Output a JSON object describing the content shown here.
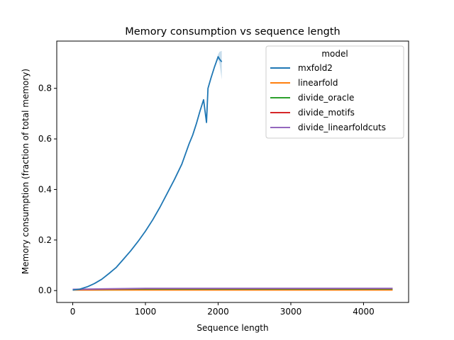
{
  "chart_data": {
    "type": "line",
    "title": "Memory consumption vs sequence length",
    "xlabel": "Sequence length",
    "ylabel": "Memory consumption (fraction of total memory)",
    "xlim": [
      -220,
      4620
    ],
    "ylim": [
      -0.047,
      0.987
    ],
    "xticks": [
      0,
      1000,
      2000,
      3000,
      4000
    ],
    "xtick_labels": [
      "0",
      "1000",
      "2000",
      "3000",
      "4000"
    ],
    "yticks": [
      0.0,
      0.2,
      0.4,
      0.6,
      0.8
    ],
    "ytick_labels": [
      "0.0",
      "0.2",
      "0.4",
      "0.6",
      "0.8"
    ],
    "grid": false,
    "legend": {
      "title": "model",
      "placement": "top-right"
    },
    "series": [
      {
        "name": "mxfold2",
        "color": "#1f77b4",
        "x": [
          0,
          100,
          200,
          300,
          400,
          500,
          600,
          700,
          800,
          900,
          1000,
          1100,
          1200,
          1300,
          1400,
          1500,
          1600,
          1650,
          1700,
          1750,
          1800,
          1840,
          1860,
          1900,
          1950,
          2000,
          2020,
          2050
        ],
        "y": [
          0.002,
          0.006,
          0.015,
          0.028,
          0.045,
          0.068,
          0.092,
          0.125,
          0.158,
          0.195,
          0.235,
          0.28,
          0.33,
          0.385,
          0.44,
          0.5,
          0.58,
          0.615,
          0.66,
          0.71,
          0.755,
          0.665,
          0.8,
          0.84,
          0.885,
          0.925,
          0.915,
          0.905
        ],
        "band_low": [
          0.002,
          0.006,
          0.015,
          0.028,
          0.045,
          0.068,
          0.092,
          0.125,
          0.158,
          0.195,
          0.235,
          0.28,
          0.33,
          0.385,
          0.44,
          0.5,
          0.58,
          0.615,
          0.66,
          0.71,
          0.755,
          0.665,
          0.8,
          0.84,
          0.885,
          0.915,
          0.895,
          0.835
        ],
        "band_high": [
          0.002,
          0.006,
          0.015,
          0.028,
          0.045,
          0.068,
          0.092,
          0.125,
          0.158,
          0.195,
          0.235,
          0.28,
          0.33,
          0.385,
          0.44,
          0.5,
          0.58,
          0.615,
          0.66,
          0.71,
          0.755,
          0.665,
          0.8,
          0.84,
          0.885,
          0.935,
          0.945,
          0.948
        ]
      },
      {
        "name": "linearfold",
        "color": "#ff7f0e",
        "x": [
          0,
          500,
          1000,
          1500,
          2000,
          2500,
          3000,
          3500,
          4000,
          4400
        ],
        "y": [
          0.002,
          0.002,
          0.002,
          0.002,
          0.002,
          0.002,
          0.002,
          0.002,
          0.002,
          0.002
        ]
      },
      {
        "name": "divide_oracle",
        "color": "#2ca02c",
        "x": [
          0,
          500,
          1000,
          1500,
          2000,
          2500,
          3000,
          3500,
          4000,
          4400
        ],
        "y": [
          0.004,
          0.005,
          0.006,
          0.006,
          0.006,
          0.006,
          0.006,
          0.006,
          0.006,
          0.006
        ]
      },
      {
        "name": "divide_motifs",
        "color": "#d62728",
        "x": [
          0,
          500,
          1000,
          1500,
          2000,
          2500,
          3000,
          3500,
          4000,
          4400
        ],
        "y": [
          0.004,
          0.006,
          0.008,
          0.008,
          0.008,
          0.008,
          0.008,
          0.008,
          0.008,
          0.008
        ]
      },
      {
        "name": "divide_linearfoldcuts",
        "color": "#9467bd",
        "x": [
          0,
          500,
          1000,
          1500,
          2000,
          2500,
          3000,
          3500,
          4000,
          4400
        ],
        "y": [
          0.005,
          0.007,
          0.009,
          0.009,
          0.009,
          0.009,
          0.009,
          0.009,
          0.009,
          0.009
        ]
      }
    ]
  }
}
